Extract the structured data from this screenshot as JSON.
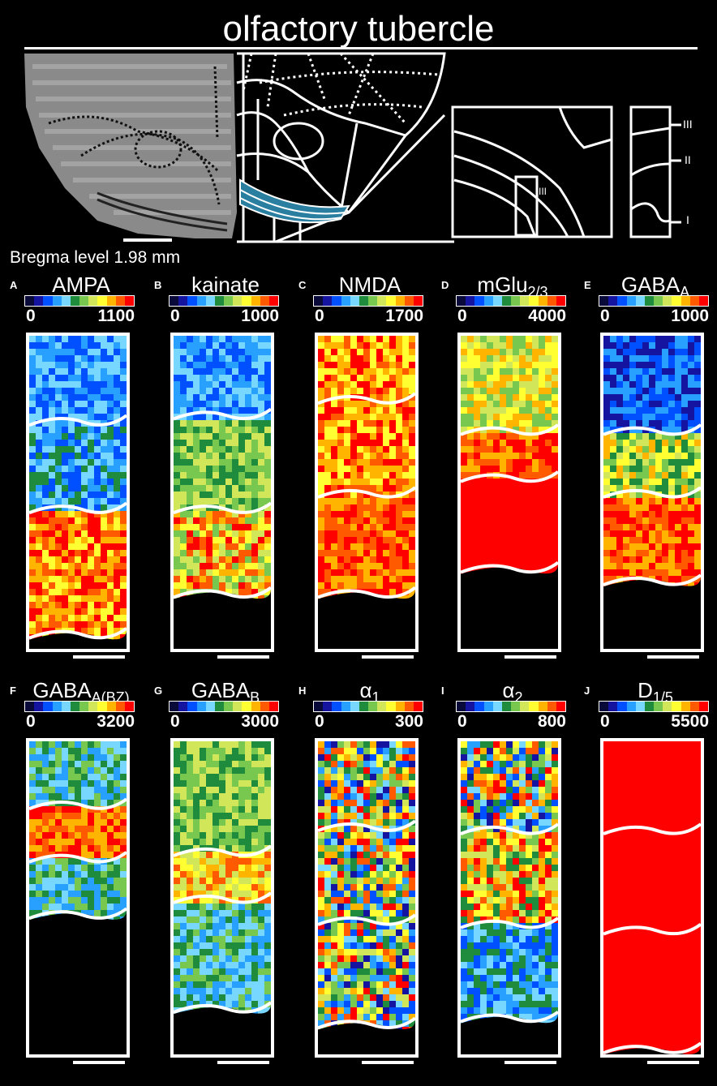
{
  "figure": {
    "title": "olfactory tubercle",
    "bregma_text": "Bregma level 1.98 mm",
    "layer_labels": [
      "III",
      "II",
      "I",
      "III"
    ]
  },
  "colormap": [
    "#0a0a3a",
    "#1414a0",
    "#0050ff",
    "#28a0ff",
    "#78d7ff",
    "#1e8c3c",
    "#78c850",
    "#d2e65a",
    "#ffff32",
    "#ffb400",
    "#ff5a00",
    "#ff0000"
  ],
  "panels": [
    {
      "letter": "A",
      "name": "AMPA",
      "sub": "",
      "min": "0",
      "max": "1100"
    },
    {
      "letter": "B",
      "name": "kainate",
      "sub": "",
      "min": "0",
      "max": "1000"
    },
    {
      "letter": "C",
      "name": "NMDA",
      "sub": "",
      "min": "0",
      "max": "1700"
    },
    {
      "letter": "D",
      "name": "mGlu",
      "sub": "2/3",
      "min": "0",
      "max": "4000"
    },
    {
      "letter": "E",
      "name": "GABA",
      "sub": "A",
      "min": "0",
      "max": "1000"
    },
    {
      "letter": "F",
      "name": "GABA",
      "sub": "A(BZ)",
      "min": "0",
      "max": "3200"
    },
    {
      "letter": "G",
      "name": "GABA",
      "sub": "B",
      "min": "0",
      "max": "3000"
    },
    {
      "letter": "H",
      "name": "α",
      "sub": "1",
      "min": "0",
      "max": "300"
    },
    {
      "letter": "I",
      "name": "α",
      "sub": "2",
      "min": "0",
      "max": "800"
    },
    {
      "letter": "J",
      "name": "D",
      "sub": "1/5",
      "min": "0",
      "max": "5500"
    }
  ]
}
